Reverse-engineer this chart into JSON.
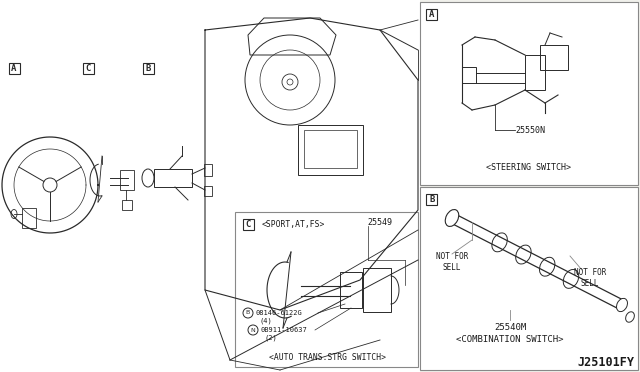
{
  "background_color": "#f0f0eb",
  "white": "#ffffff",
  "line_color": "#2a2a2a",
  "text_color": "#1a1a1a",
  "border_color": "#888888",
  "fig_width": 6.4,
  "fig_height": 3.72,
  "dpi": 100,
  "labels": {
    "part_A": "25550N",
    "part_A_desc": "<STEERING SWITCH>",
    "part_B": "25540M",
    "part_B_desc": "<COMBINATION SWITCH>",
    "part_C_sport": "<SPORT,AT,FS>",
    "part_C": "25549",
    "part_C_desc": "<AUTO TRANS.STRG SWITCH>",
    "bolt1": "08146-6122G",
    "bolt1_qty": "(4)",
    "bolt2": "0B911-10637",
    "bolt2_qty": "(2)",
    "not_for_sell": "NOT FOR\nSELL",
    "diagram_id": "J25101FY"
  }
}
